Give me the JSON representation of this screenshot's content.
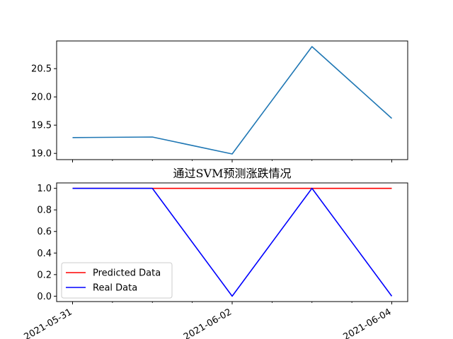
{
  "chart_data": [
    {
      "type": "line",
      "title": "",
      "xlabel": "",
      "ylabel": "",
      "x": [
        "2021-05-31",
        "2021-06-01",
        "2021-06-02",
        "2021-06-03",
        "2021-06-04"
      ],
      "series": [
        {
          "name": "",
          "color": "#1f77b4",
          "values": [
            19.28,
            19.29,
            18.99,
            20.89,
            19.62
          ]
        }
      ],
      "ylim": [
        18.89,
        20.99
      ],
      "yticks": [
        "19.0",
        "19.5",
        "20.0",
        "20.5"
      ],
      "xtick_labels": [
        "",
        "",
        "",
        "",
        ""
      ],
      "grid": false,
      "legend": "none"
    },
    {
      "type": "line",
      "title": "通过SVM预测涨跌情况",
      "xlabel": "",
      "ylabel": "",
      "x": [
        "2021-05-31",
        "2021-06-01",
        "2021-06-02",
        "2021-06-03",
        "2021-06-04"
      ],
      "series": [
        {
          "name": "Predicted Data",
          "color": "#ff0000",
          "values": [
            1,
            1,
            1,
            1,
            1
          ]
        },
        {
          "name": "Real Data",
          "color": "#0000ff",
          "values": [
            1,
            1,
            0,
            1,
            0
          ]
        }
      ],
      "ylim": [
        -0.05,
        1.05
      ],
      "yticks": [
        "0.0",
        "0.2",
        "0.4",
        "0.6",
        "0.8",
        "1.0"
      ],
      "xtick_labels": [
        "2021-05-31",
        "",
        "2021-06-02",
        "",
        "2021-06-04"
      ],
      "grid": false,
      "legend": "lower-left"
    }
  ]
}
